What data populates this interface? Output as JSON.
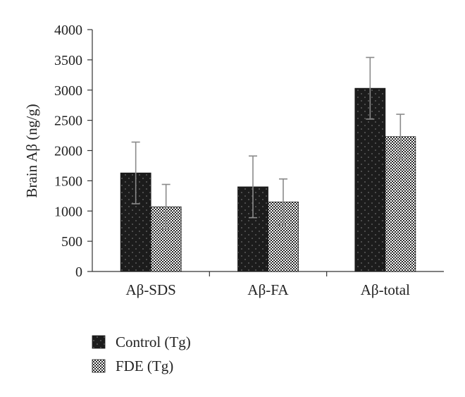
{
  "chart_data": {
    "type": "bar",
    "title": "",
    "ylabel": "Brain Aβ (ng/g)",
    "xlabel": "",
    "ylim": [
      0,
      4000
    ],
    "yticks": [
      0,
      500,
      1000,
      1500,
      2000,
      2500,
      3000,
      3500,
      4000
    ],
    "categories": [
      "Aβ-SDS",
      "Aβ-FA",
      "Aβ-total"
    ],
    "series": [
      {
        "name": "Control (Tg)",
        "values": [
          1630,
          1400,
          3030
        ],
        "error": [
          510,
          510,
          510
        ],
        "pattern": "dark-dotted",
        "color": "#1c1c1c"
      },
      {
        "name": "FDE (Tg)",
        "values": [
          1070,
          1150,
          2230
        ],
        "error": [
          370,
          380,
          370
        ],
        "pattern": "checkered",
        "color": "#3a3a3a"
      }
    ],
    "grid": false,
    "legend_position": "bottom-left"
  }
}
